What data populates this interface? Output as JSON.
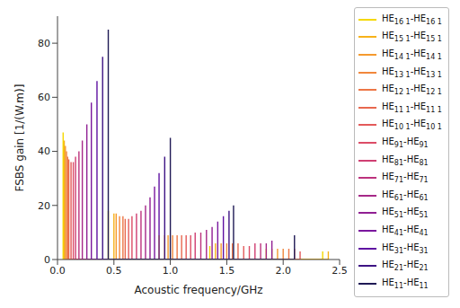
{
  "chart_data": {
    "type": "line",
    "x_label": "Acoustic frequency/GHz",
    "y_label": "FSBS gain [1/(W.m)]",
    "xlim": [
      0,
      2.5
    ],
    "xticks": [
      {
        "value": 0,
        "label": "0.0"
      },
      0.5,
      {
        "value": 1,
        "label": "1.0"
      },
      1.5,
      {
        "value": 2,
        "label": "2.0"
      },
      2.5
    ],
    "ylim": [
      0,
      90
    ],
    "yticks": [
      0,
      20,
      40,
      60,
      80
    ],
    "grid": false,
    "legend": "right",
    "series": [
      {
        "name": "HE16 1-HE16 1",
        "color": "#f5d800",
        "x": [
          0.05,
          0.45,
          0.9,
          1.35,
          1.85,
          2.35
        ],
        "values": [
          47,
          18,
          9,
          5,
          4,
          3
        ]
      },
      {
        "name": "HE15 1-HE15 1",
        "color": "#f7b21a",
        "x": [
          0.06,
          0.5,
          0.95,
          1.4,
          1.9,
          2.4
        ],
        "values": [
          44,
          17,
          9,
          6,
          4,
          3
        ]
      },
      {
        "name": "HE14 1-HE14 1",
        "color": "#f59a2e",
        "x": [
          0.07,
          0.52,
          0.98,
          1.45,
          1.95
        ],
        "values": [
          42,
          17,
          9,
          6,
          4
        ]
      },
      {
        "name": "HE13 1-HE13 1",
        "color": "#f1873c",
        "x": [
          0.08,
          0.55,
          1.02,
          1.5,
          2.0
        ],
        "values": [
          40,
          16,
          9,
          6,
          4
        ]
      },
      {
        "name": "HE12 1-HE12 1",
        "color": "#ed7646",
        "x": [
          0.09,
          0.58,
          1.06,
          1.55,
          2.05
        ],
        "values": [
          38,
          16,
          9,
          6,
          4
        ]
      },
      {
        "name": "HE11 1-HE11 1",
        "color": "#e8684f",
        "x": [
          0.1,
          0.6,
          1.1,
          1.6,
          2.1
        ],
        "values": [
          37,
          15,
          9,
          6,
          4
        ]
      },
      {
        "name": "HE10 1-HE10 1",
        "color": "#e35a5a",
        "x": [
          0.12,
          0.63,
          1.14,
          1.65,
          2.15
        ],
        "values": [
          36,
          15,
          9,
          5,
          3
        ]
      },
      {
        "name": "HE91-HE91",
        "color": "#dc4c66",
        "x": [
          0.14,
          0.66,
          1.18,
          1.7
        ],
        "values": [
          36,
          16,
          9,
          5
        ]
      },
      {
        "name": "HE81-HE81",
        "color": "#cf3e72",
        "x": [
          0.16,
          0.7,
          1.22,
          1.75
        ],
        "values": [
          38,
          17,
          10,
          6
        ]
      },
      {
        "name": "HE71-HE71",
        "color": "#bc327d",
        "x": [
          0.19,
          0.74,
          1.27,
          1.8
        ],
        "values": [
          40,
          18,
          10,
          6
        ]
      },
      {
        "name": "HE61-HE61",
        "color": "#a62888",
        "x": [
          0.22,
          0.78,
          1.32,
          1.85
        ],
        "values": [
          44,
          20,
          11,
          6
        ]
      },
      {
        "name": "HE51-HE51",
        "color": "#901f93",
        "x": [
          0.26,
          0.82,
          1.37,
          1.9
        ],
        "values": [
          50,
          23,
          12,
          7
        ]
      },
      {
        "name": "HE41-HE41",
        "color": "#7a179e",
        "x": [
          0.3,
          0.86,
          1.42
        ],
        "values": [
          58,
          27,
          14
        ]
      },
      {
        "name": "HE31-HE31",
        "color": "#5f12a2",
        "x": [
          0.35,
          0.9,
          1.47
        ],
        "values": [
          66,
          32,
          16
        ]
      },
      {
        "name": "HE21-HE21",
        "color": "#3e1484",
        "x": [
          0.4,
          0.95,
          1.52
        ],
        "values": [
          75,
          38,
          18
        ]
      },
      {
        "name": "HE11-HE11",
        "color": "#1f1a55",
        "x": [
          0.45,
          1.0,
          1.56,
          2.1
        ],
        "values": [
          85,
          45,
          20,
          9
        ]
      }
    ]
  }
}
